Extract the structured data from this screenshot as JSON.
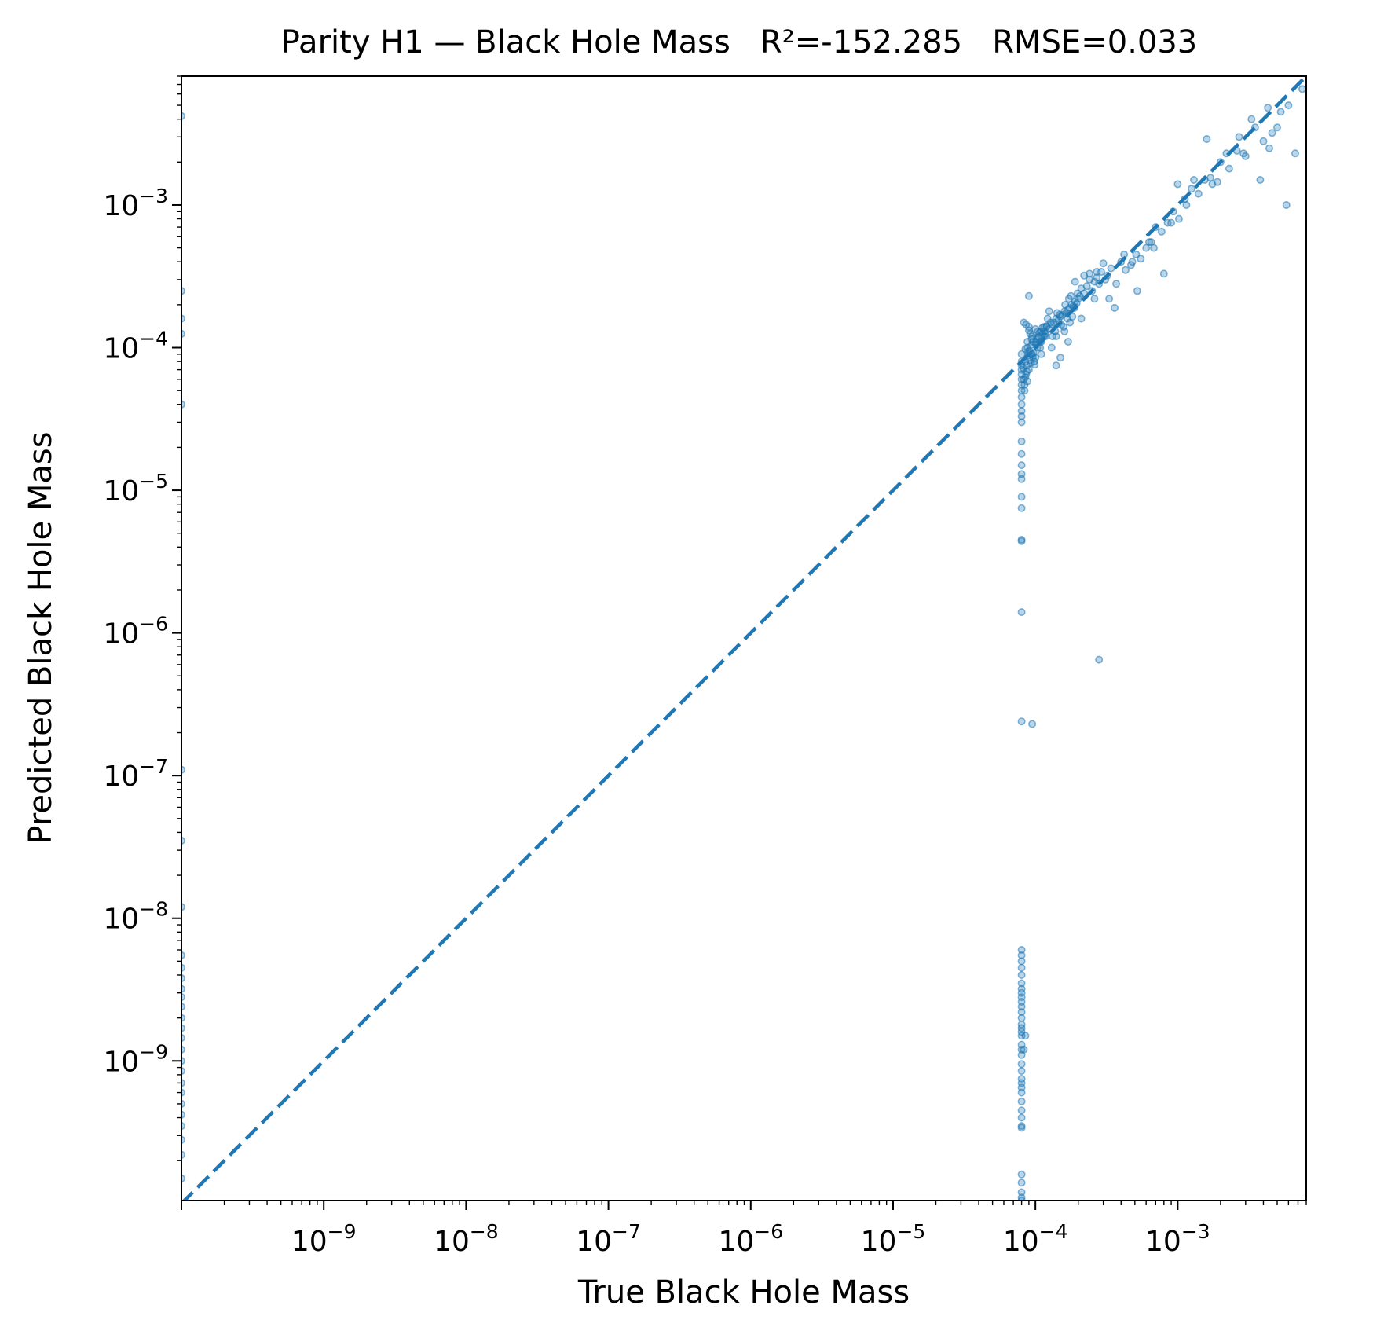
{
  "chart_data": {
    "type": "scatter",
    "title": "Parity H1 — Black Hole Mass   R²=-152.285   RMSE=0.033",
    "xlabel": "True Black Hole Mass",
    "ylabel": "Predicted Black Hole Mass",
    "xscale": "log",
    "yscale": "log",
    "xlim": [
      1e-10,
      0.008
    ],
    "ylim": [
      1.05e-10,
      0.008
    ],
    "grid": false,
    "legend": "none",
    "x_ticks": [
      {
        "value": 1e-09,
        "mant": "10",
        "exp": "−9"
      },
      {
        "value": 1e-08,
        "mant": "10",
        "exp": "−8"
      },
      {
        "value": 1e-07,
        "mant": "10",
        "exp": "−7"
      },
      {
        "value": 1e-06,
        "mant": "10",
        "exp": "−6"
      },
      {
        "value": 1e-05,
        "mant": "10",
        "exp": "−5"
      },
      {
        "value": 0.0001,
        "mant": "10",
        "exp": "−4"
      },
      {
        "value": 0.001,
        "mant": "10",
        "exp": "−3"
      }
    ],
    "y_ticks": [
      {
        "value": 1e-09,
        "mant": "10",
        "exp": "−9"
      },
      {
        "value": 1e-08,
        "mant": "10",
        "exp": "−8"
      },
      {
        "value": 1e-07,
        "mant": "10",
        "exp": "−7"
      },
      {
        "value": 1e-06,
        "mant": "10",
        "exp": "−6"
      },
      {
        "value": 1e-05,
        "mant": "10",
        "exp": "−5"
      },
      {
        "value": 0.0001,
        "mant": "10",
        "exp": "−4"
      },
      {
        "value": 0.001,
        "mant": "10",
        "exp": "−3"
      }
    ],
    "reference_line": {
      "style": "dashed",
      "x": [
        1e-10,
        0.008
      ],
      "y": [
        1e-10,
        0.008
      ]
    },
    "colors": {
      "points": "#1f77b4",
      "line": "#1f77b4"
    },
    "series": [
      {
        "x": [
          1e-10,
          1e-10,
          1e-10,
          1e-10,
          1e-10,
          1e-10,
          1e-10,
          1e-10,
          1e-10,
          1e-10,
          1e-10,
          1e-10,
          1e-10,
          1e-10,
          1e-10,
          1e-10,
          1e-10,
          1e-10,
          1e-10,
          1e-10,
          1e-10,
          1e-10,
          1e-10,
          1e-10,
          1e-10,
          1e-10,
          1e-10,
          1e-10,
          8e-05,
          8e-05,
          8e-05,
          8e-05,
          8e-05,
          8e-05,
          8e-05,
          8e-05,
          8e-05,
          8e-05,
          8e-05,
          8e-05,
          8e-05,
          8e-05,
          8e-05,
          8e-05,
          8e-05,
          8e-05,
          8e-05,
          8e-05,
          8e-05,
          8e-05,
          8e-05,
          8e-05,
          8e-05,
          8e-05,
          8e-05,
          8e-05,
          8e-05,
          8e-05,
          8.5e-05,
          9.5e-05,
          8.3e-05,
          8e-05,
          8e-05,
          8e-05,
          8e-05,
          8e-05,
          8e-05,
          8e-05,
          8e-05,
          8e-05,
          8e-05,
          8e-05,
          8e-05,
          8e-05,
          8e-05,
          8e-05,
          8e-05,
          8e-05,
          8e-05,
          8e-05,
          8e-05,
          8e-05,
          8e-05,
          8e-05,
          8e-05,
          8e-05,
          8e-05,
          8e-05,
          8e-05,
          8e-05,
          8e-05,
          8.3e-05,
          8.5e-05,
          8.8e-05,
          9e-05,
          9.3e-05,
          9.6e-05,
          0.0001,
          0.000105,
          8.4e-05,
          8.7e-05,
          9.1e-05,
          9.4e-05,
          9.8e-05,
          0.000102,
          0.000108,
          8.6e-05,
          8.9e-05,
          9.2e-05,
          9.7e-05,
          0.000104,
          8.2e-05,
          8.5e-05,
          8.8e-05,
          9.1e-05,
          9.5e-05,
          0.0001,
          0.00011,
          8.4e-05,
          8.7e-05,
          9e-05,
          9.3e-05,
          9.6e-05,
          0.000101,
          0.000107,
          0.000115,
          8.3e-05,
          8.6e-05,
          8.9e-05,
          9.4e-05,
          9.9e-05,
          0.000103,
          0.000112,
          0.000118,
          8.5e-05,
          9e-05,
          9.5e-05,
          0.0001,
          0.000106,
          0.00012,
          8.8e-05,
          0.000108,
          0.000112,
          0.000116,
          0.00012,
          0.000125,
          0.00013,
          0.000135,
          0.00014,
          0.000145,
          0.00015,
          0.000155,
          0.00016,
          0.000165,
          0.00017,
          0.000175,
          0.00018,
          0.000185,
          0.00019,
          0.000195,
          0.0002,
          0.00011,
          0.000118,
          0.000128,
          0.000138,
          0.000148,
          0.000158,
          0.000168,
          0.000178,
          0.000188,
          0.000198,
          0.000115,
          0.000122,
          0.000132,
          0.000142,
          0.000152,
          0.000162,
          0.000172,
          0.000182,
          0.000205,
          0.00021,
          0.00022,
          0.00023,
          0.00024,
          0.00025,
          0.00026,
          0.00027,
          0.00028,
          0.00013,
          0.00014,
          0.00016,
          0.00019,
          0.00022,
          0.00026,
          0.000125,
          0.000175,
          0.00015,
          9e-05,
          0.00011,
          0.00014,
          0.00017,
          0.00029,
          0.00031,
          0.00034,
          0.00037,
          0.0004,
          0.00043,
          0.00047,
          0.00051,
          0.00055,
          0.0006,
          0.00065,
          0.0007,
          0.00077,
          0.00085,
          0.00093,
          0.00102,
          0.00112,
          0.00125,
          0.0014,
          0.00155,
          0.00175,
          0.002,
          0.0023,
          0.0026,
          0.003,
          0.0035,
          0.004,
          0.0046,
          0.0053,
          0.006,
          0.00033,
          0.00042,
          0.00052,
          0.00063,
          0.0008,
          0.001,
          0.0013,
          0.0017,
          0.0022,
          0.0029,
          0.0038,
          0.005,
          0.0075,
          0.0003,
          0.00028,
          0.00068,
          0.0009,
          0.0019,
          0.0027,
          0.0044,
          0.0058,
          0.0067,
          0.00036,
          0.00048,
          0.00115,
          0.0016,
          0.0033,
          0.0043,
          0.00021,
          0.00024,
          0.00027,
          0.00032
        ],
        "y": [
          0.0042,
          0.00025,
          0.00016,
          0.000125,
          4e-05,
          1.1e-07,
          3.5e-08,
          1.2e-08,
          5.5e-09,
          4.5e-09,
          3.8e-09,
          3.2e-09,
          2.8e-09,
          2.4e-09,
          2e-09,
          1.7e-09,
          1.45e-09,
          1.2e-09,
          1e-09,
          8.5e-10,
          7e-10,
          6e-10,
          5e-10,
          4.2e-10,
          3.5e-10,
          2.8e-10,
          2.2e-10,
          1.5e-10,
          3e-05,
          2.2e-05,
          1.8e-05,
          1.5e-05,
          1.3e-05,
          1.2e-05,
          9e-06,
          7.5e-06,
          4.5e-06,
          4.4e-06,
          1.4e-06,
          2.4e-07,
          6e-09,
          5.5e-09,
          5e-09,
          4.5e-09,
          4e-09,
          3.5e-09,
          3.2e-09,
          3e-09,
          2.8e-09,
          2.6e-09,
          2.4e-09,
          2.2e-09,
          2e-09,
          1.8e-09,
          1.7e-09,
          1.6e-09,
          1.5e-09,
          1.3e-09,
          1.5e-09,
          2.3e-07,
          1.2e-09,
          1.2e-09,
          1.1e-09,
          9.5e-10,
          8.5e-10,
          7.5e-10,
          7e-10,
          6.5e-10,
          6e-10,
          5.2e-10,
          4.5e-10,
          4e-10,
          3.5e-10,
          3.4e-10,
          1.6e-10,
          1.4e-10,
          1.2e-10,
          1.1e-10,
          1.05e-10,
          3.3e-05,
          3.6e-05,
          4e-05,
          4.5e-05,
          5e-05,
          5.5e-05,
          6e-05,
          6.5e-05,
          7e-05,
          7.5e-05,
          8e-05,
          9e-05,
          6e-05,
          8e-05,
          0.0001,
          7e-05,
          9e-05,
          0.00011,
          8.5e-05,
          0.00012,
          5e-05,
          7.5e-05,
          9.5e-05,
          0.000105,
          8e-05,
          0.000115,
          0.0001,
          6.5e-05,
          8.8e-05,
          0.000125,
          9.2e-05,
          0.00013,
          7.2e-05,
          9.8e-05,
          0.00011,
          8.2e-05,
          0.00012,
          0.000135,
          0.00011,
          5.5e-05,
          6.8e-05,
          0.00014,
          7.8e-05,
          8.6e-05,
          0.000105,
          0.000128,
          0.00012,
          0.00015,
          0.000145,
          9.4e-05,
          0.000115,
          7.6e-05,
          0.0001,
          0.000138,
          0.000125,
          6.2e-05,
          0.000132,
          9e-05,
          0.000108,
          0.000118,
          0.000142,
          5.8e-05,
          0.00011,
          0.000125,
          0.00013,
          0.00014,
          0.000135,
          0.000145,
          0.00015,
          0.00016,
          0.000155,
          0.000165,
          0.00017,
          0.00018,
          0.000175,
          0.000185,
          0.00019,
          0.0002,
          0.000195,
          0.00021,
          0.000205,
          0.00022,
          0.00013,
          0.00012,
          0.00015,
          0.00013,
          0.00017,
          0.00014,
          0.00016,
          0.00023,
          0.00019,
          0.00024,
          0.00014,
          0.00016,
          0.00012,
          0.000175,
          0.000145,
          0.0002,
          0.00022,
          0.000165,
          0.00023,
          0.00026,
          0.00024,
          0.00027,
          0.0003,
          0.00025,
          0.00029,
          0.00031,
          0.00028,
          0.0001,
          0.00012,
          0.00013,
          0.00029,
          0.00032,
          0.00022,
          0.00018,
          0.00015,
          8.5e-05,
          0.00023,
          9e-05,
          7.5e-05,
          0.00011,
          0.00034,
          0.0003,
          0.00036,
          0.00028,
          0.0004,
          0.00035,
          0.00038,
          0.00045,
          0.00042,
          0.0005,
          0.00055,
          0.0007,
          0.00065,
          0.00075,
          0.0009,
          0.0008,
          0.0011,
          0.0013,
          0.0012,
          0.0015,
          0.0014,
          0.002,
          0.0018,
          0.0024,
          0.0022,
          0.0035,
          0.0028,
          0.0032,
          0.0045,
          0.005,
          0.00022,
          0.00045,
          0.00025,
          0.00055,
          0.00033,
          0.0014,
          0.0015,
          0.00155,
          0.0023,
          0.0023,
          0.0015,
          0.0035,
          0.0065,
          0.00039,
          6.5e-07,
          0.0005,
          0.00075,
          0.00145,
          0.003,
          0.0025,
          0.001,
          0.0023,
          0.00019,
          0.0004,
          0.001,
          0.0029,
          0.004,
          0.0048,
          0.00016,
          0.00033,
          0.00034,
          0.00032
        ]
      }
    ]
  }
}
